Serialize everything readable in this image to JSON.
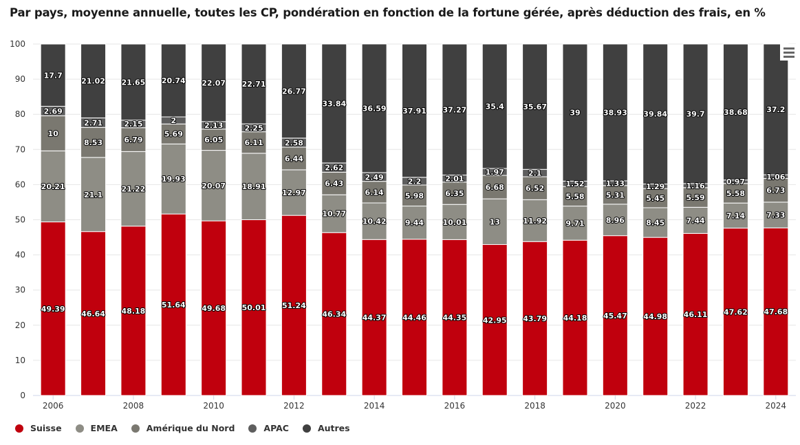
{
  "title": "Par pays, moyenne annuelle, toutes les CP, pondération en fonction de la fortune gérée, après déduction des frais, en %",
  "menu": {
    "icon": "hamburger-menu-icon"
  },
  "chart_data": {
    "type": "bar",
    "stacked": true,
    "title": "Par pays, moyenne annuelle, toutes les CP, pondération en fonction de la fortune gérée, après déduction des frais, en %",
    "xlabel": "",
    "ylabel": "",
    "ylim": [
      0,
      100
    ],
    "yticks": [
      0,
      10,
      20,
      30,
      40,
      50,
      60,
      70,
      80,
      90,
      100
    ],
    "categories": [
      "2006",
      "2007",
      "2008",
      "2009",
      "2010",
      "2011",
      "2012",
      "2013",
      "2014",
      "2015",
      "2016",
      "2017",
      "2018",
      "2019",
      "2020",
      "2021",
      "2022",
      "2023",
      "2024"
    ],
    "xtick_labels": [
      "2006",
      "2008",
      "2010",
      "2012",
      "2014",
      "2016",
      "2018",
      "2020",
      "2022",
      "2024"
    ],
    "grid": true,
    "legend_position": "bottom-left",
    "series": [
      {
        "name": "Suisse",
        "color": "#c0000d",
        "values": [
          49.39,
          46.64,
          48.18,
          51.64,
          49.68,
          50.01,
          51.24,
          46.34,
          44.37,
          44.46,
          44.35,
          42.95,
          43.79,
          44.18,
          45.47,
          44.98,
          46.11,
          47.62,
          47.68
        ]
      },
      {
        "name": "EMEA",
        "color": "#8e8d85",
        "values": [
          20.21,
          21.1,
          21.22,
          19.93,
          20.07,
          18.91,
          12.97,
          10.77,
          10.42,
          9.44,
          10.01,
          13,
          11.92,
          9.71,
          8.96,
          8.45,
          7.44,
          7.14,
          7.33
        ]
      },
      {
        "name": "Amérique du Nord",
        "color": "#7a7870",
        "values": [
          10,
          8.53,
          6.79,
          5.69,
          6.05,
          6.11,
          6.44,
          6.43,
          6.14,
          5.98,
          6.35,
          6.68,
          6.52,
          5.58,
          5.31,
          5.45,
          5.59,
          5.58,
          6.73
        ]
      },
      {
        "name": "APAC",
        "color": "#5e5e5e",
        "values": [
          2.69,
          2.71,
          2.15,
          2,
          2.13,
          2.25,
          2.58,
          2.62,
          2.49,
          2.2,
          2.01,
          1.97,
          2.1,
          1.52,
          1.33,
          1.29,
          1.16,
          0.97,
          1.06
        ]
      },
      {
        "name": "Autres",
        "color": "#404040",
        "values": [
          17.7,
          21.02,
          21.65,
          20.74,
          22.07,
          22.71,
          26.77,
          33.84,
          36.59,
          37.91,
          37.27,
          35.4,
          35.67,
          39,
          38.93,
          39.84,
          39.7,
          38.68,
          37.2
        ]
      }
    ]
  }
}
